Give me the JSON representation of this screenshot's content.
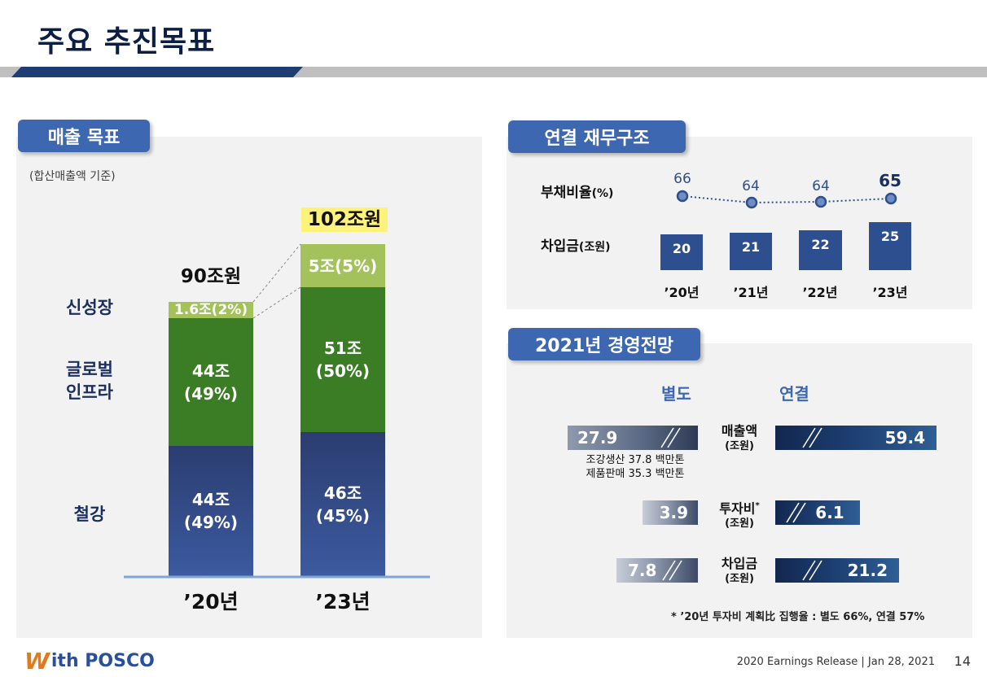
{
  "title": "주요 추진목표",
  "sales": {
    "header": "매출 목표",
    "basis": "(합산매출액 기준)",
    "row_labels": {
      "new_growth": "신성장",
      "global_1": "글로벌",
      "global_2": "인프라",
      "steel": "철강"
    },
    "bars": [
      {
        "year": "’20년",
        "total": "90조원",
        "new_growth": "1.6조(2%)",
        "global_1": "44조",
        "global_2": "(49%)",
        "steel_1": "44조",
        "steel_2": "(49%)"
      },
      {
        "year": "’23년",
        "total": "102조원",
        "new_growth": "5조(5%)",
        "global_1": "51조",
        "global_2": "(50%)",
        "steel_1": "46조",
        "steel_2": "(45%)"
      }
    ]
  },
  "financial": {
    "header": "연결 재무구조",
    "debt_ratio_label": "부채비율",
    "debt_ratio_unit": "(%)",
    "borrowing_label": "차입금",
    "borrowing_unit": "(조원)",
    "years": [
      "’20년",
      "’21년",
      "’22년",
      "’23년"
    ],
    "debt_ratio": [
      "66",
      "64",
      "64",
      "65"
    ],
    "borrowings": [
      "20",
      "21",
      "22",
      "25"
    ]
  },
  "outlook": {
    "header": "2021년 경영전망",
    "col_separate": "별도",
    "col_consolidated": "연결",
    "rows": [
      {
        "label": "매출액",
        "unit": "(조원)",
        "separate": "27.9",
        "consolidated": "59.4",
        "note_1": "조강생산 37.8 백만톤",
        "note_2": "제품판매 35.3 백만톤"
      },
      {
        "label": "투자비",
        "mark": "*",
        "unit": "(조원)",
        "separate": "3.9",
        "consolidated": "6.1"
      },
      {
        "label": "차입금",
        "unit": "(조원)",
        "separate": "7.8",
        "consolidated": "21.2"
      }
    ],
    "footnote": "* ’20년 투자비 계획比 집행율 : 별도 66%, 연결 57%"
  },
  "footer": {
    "logo_w": "W",
    "logo_text": "ith POSCO",
    "release": "2020 Earnings Release | Jan 28, 2021",
    "page": "14"
  },
  "colors": {
    "accent": "#3d67b0",
    "navy": "#0c1e44",
    "steel": "#2e4a8c",
    "global": "#3a7d24",
    "new_growth": "#a3c25c"
  }
}
